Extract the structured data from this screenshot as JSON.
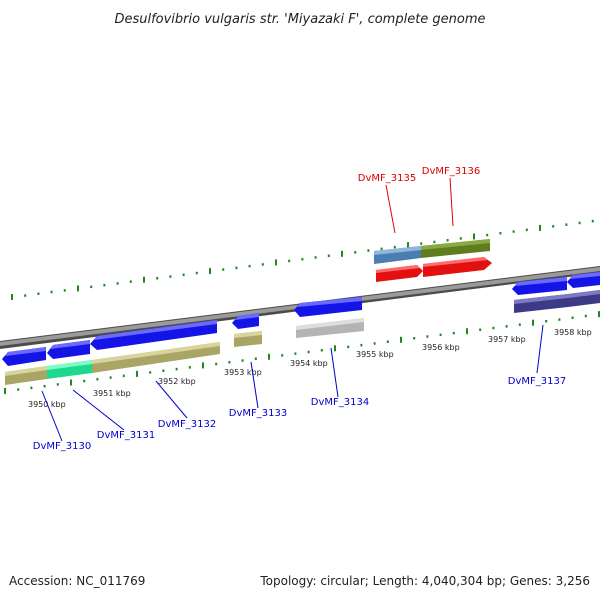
{
  "title": "Desulfovibrio vulgaris str. 'Miyazaki F', complete genome",
  "footer": {
    "accession": "Accession: NC_011769",
    "stats": "Topology: circular; Length: 4,040,304 bp; Genes: 3,256"
  },
  "colors": {
    "backbone": "#8a8a8a",
    "tick_dot": "#1e8a1e",
    "forward_gene": "#1515ee",
    "reverse_gene": "#ee1515",
    "upper_cds": "#5b8fc0",
    "upper_cds_2": "#6b8a25",
    "khaki_feature": "#b9b57a",
    "aqua_feature": "#2ee8a0",
    "grey_feature": "#c4c4c4",
    "navy_feature": "#4a4898",
    "label_blue": "#0000cc",
    "label_red": "#dd0000"
  },
  "tick_labels": [
    "3950 kbp",
    "3951 kbp",
    "3952 kbp",
    "3953 kbp",
    "3954 kbp",
    "3955 kbp",
    "3956 kbp",
    "3957 kbp",
    "3958 kbp"
  ],
  "gene_labels": {
    "DvMF_3130": "DvMF_3130",
    "DvMF_3131": "DvMF_3131",
    "DvMF_3132": "DvMF_3132",
    "DvMF_3133": "DvMF_3133",
    "DvMF_3134": "DvMF_3134",
    "DvMF_3135": "DvMF_3135",
    "DvMF_3136": "DvMF_3136",
    "DvMF_3137": "DvMF_3137"
  }
}
